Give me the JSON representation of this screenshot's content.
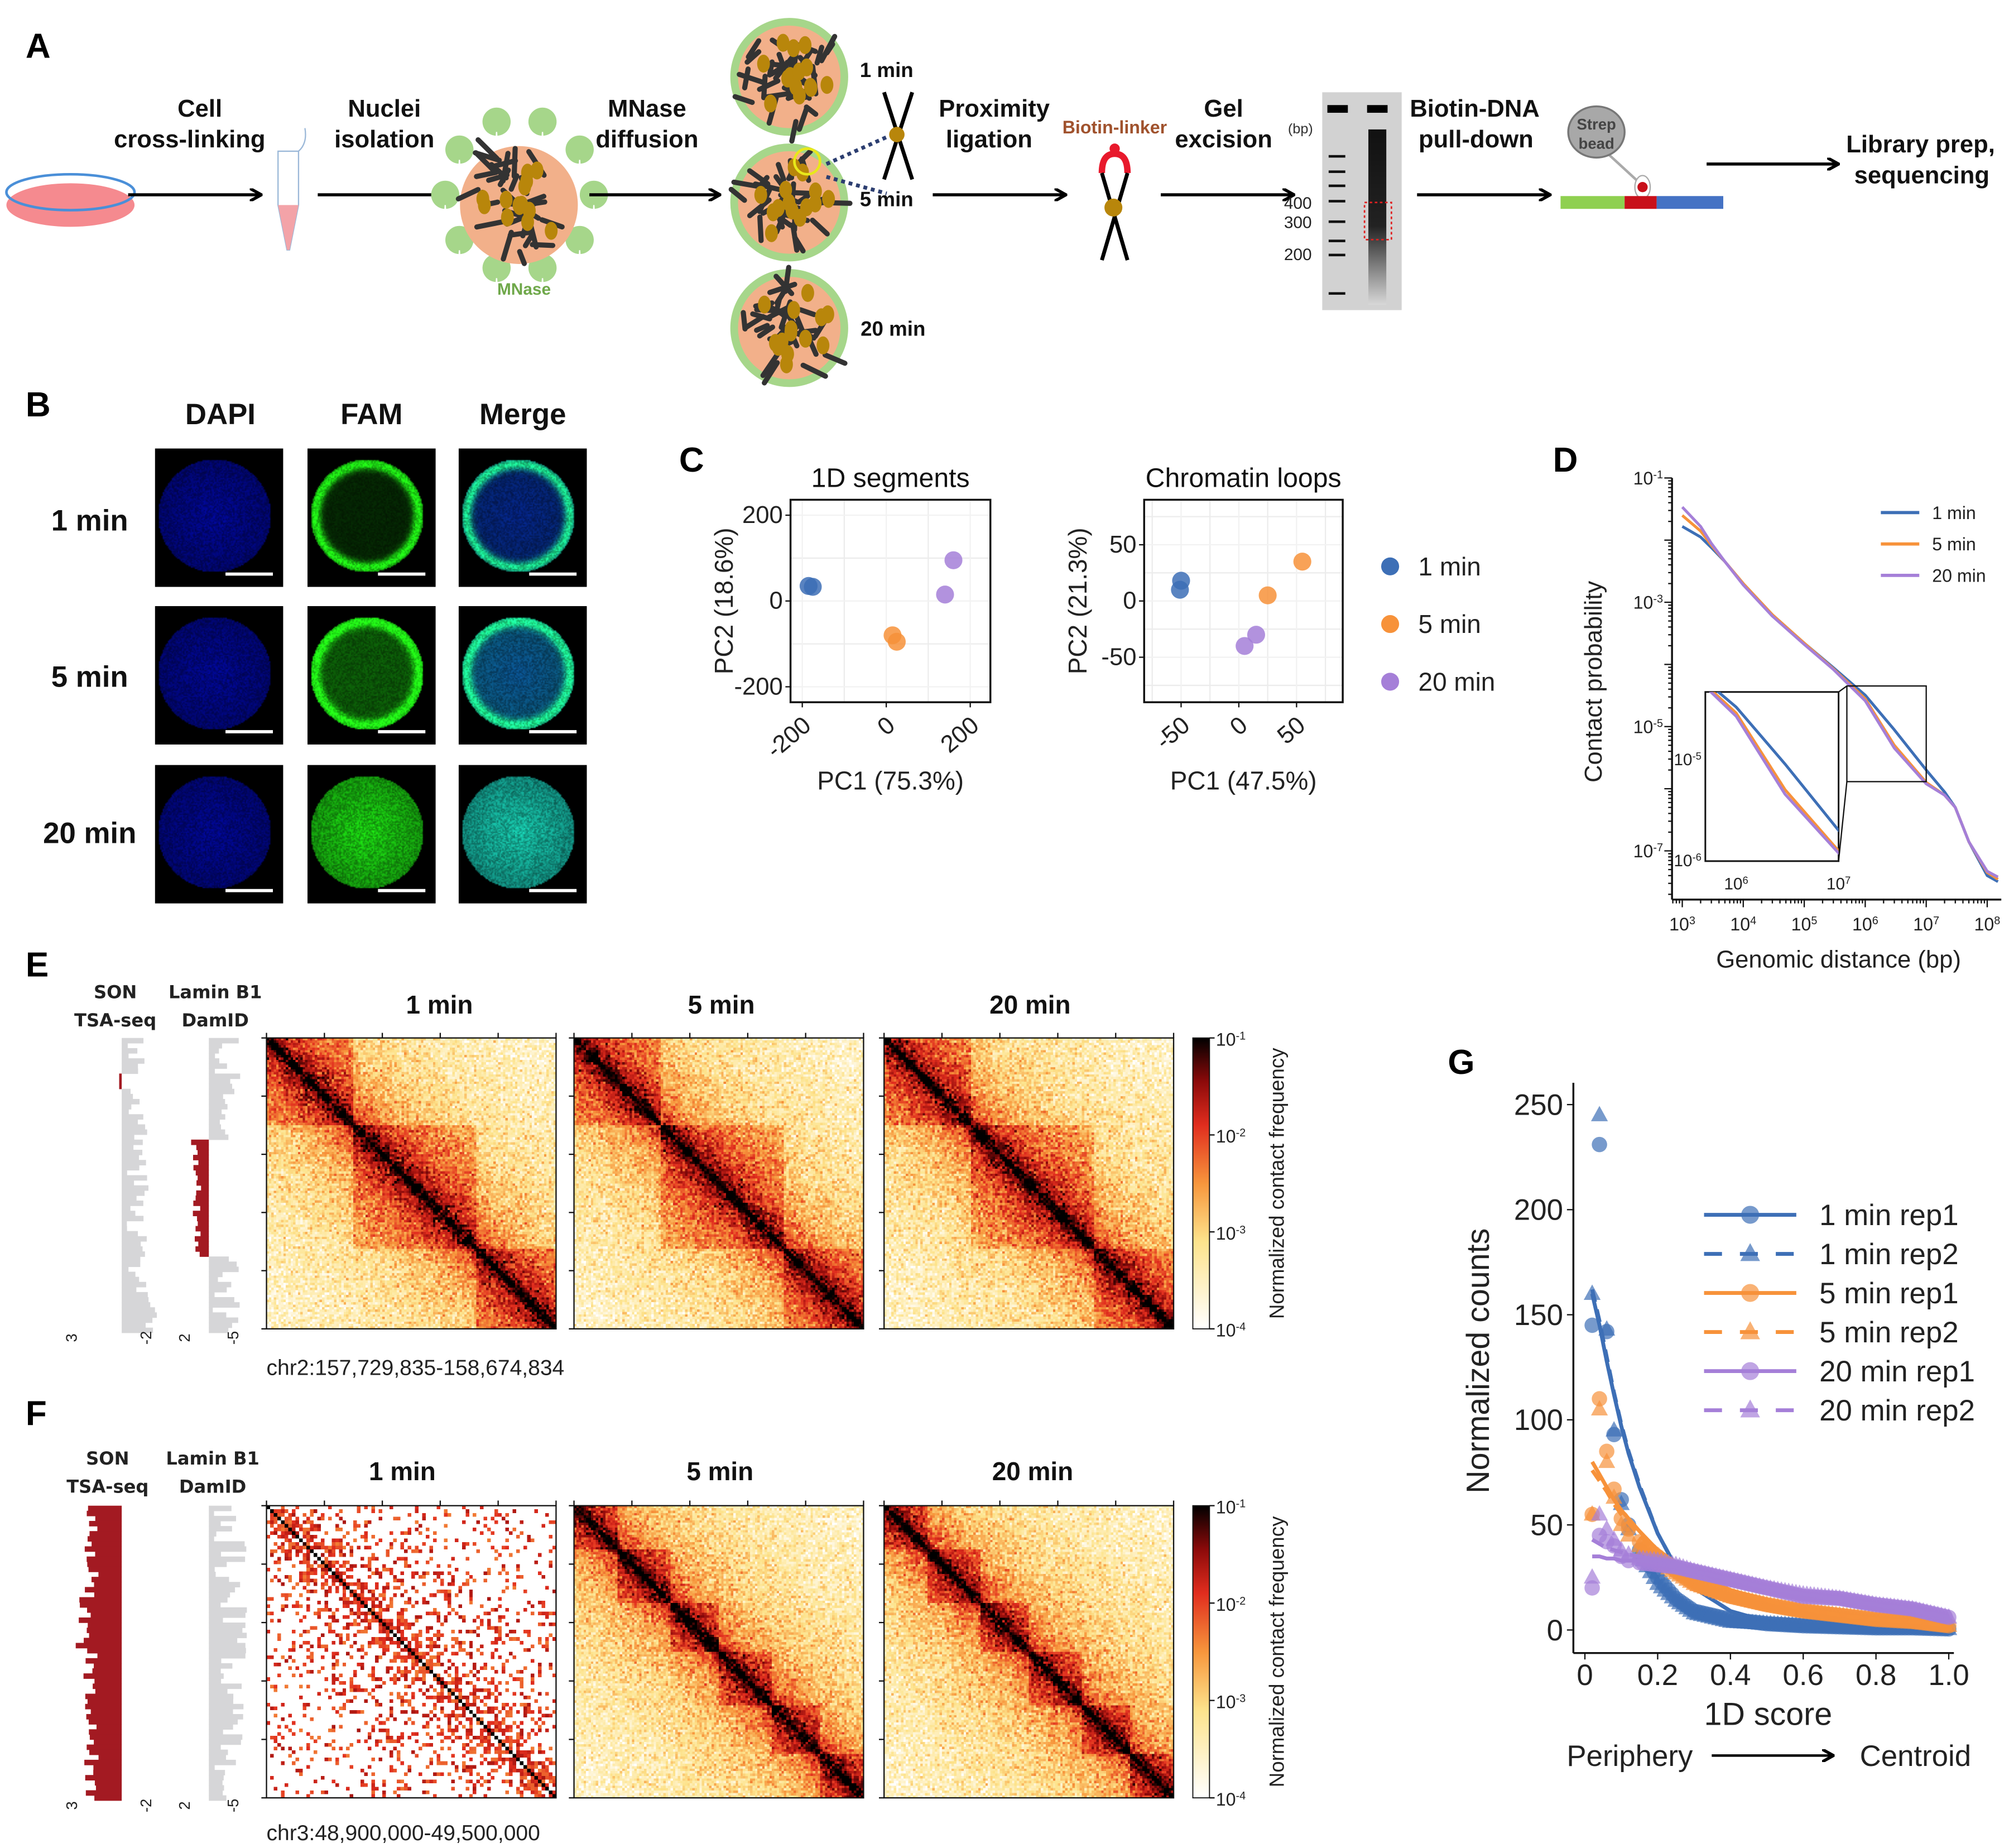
{
  "panels": {
    "a": "A",
    "b": "B",
    "c": "C",
    "d": "D",
    "e": "E",
    "f": "F",
    "g": "G"
  },
  "schematic": {
    "steps": [
      {
        "line1": "Cell",
        "line2": "cross-linking"
      },
      {
        "line1": "Nuclei",
        "line2": "isolation"
      },
      {
        "line1": "MNase",
        "line2": "diffusion"
      },
      {
        "line1": "Proximity",
        "line2": "ligation"
      },
      {
        "line1": "Gel",
        "line2": "excision"
      },
      {
        "line1": "Biotin-DNA",
        "line2": "pull-down"
      },
      {
        "line1": "Library prep,",
        "line2": "sequencing"
      }
    ],
    "mnase_label": "MNase",
    "times": [
      "1 min",
      "5 min",
      "20 min"
    ],
    "biotin_linker": "Biotin-linker",
    "gel_unit": "(bp)",
    "gel_markers": [
      "400",
      "300",
      "200"
    ],
    "strep_bead": [
      "Strep",
      "bead"
    ]
  },
  "microscopy": {
    "channels": [
      "DAPI",
      "FAM",
      "Merge"
    ],
    "rows": [
      "1 min",
      "5 min",
      "20 min"
    ]
  },
  "tracks": {
    "son": [
      "SON",
      "TSA-seq"
    ],
    "lamin": [
      "Lamin B1",
      "DamID"
    ],
    "son_axis": [
      "3",
      "-2"
    ],
    "lamin_axis": [
      "2",
      "-5"
    ]
  },
  "heatmaps": {
    "e": {
      "titles": [
        "1 min",
        "5 min",
        "20 min"
      ],
      "region": "chr2:157,729,835-158,674,834"
    },
    "f": {
      "titles": [
        "1 min",
        "5 min",
        "20 min"
      ],
      "region": "chr3:48,900,000-49,500,000"
    },
    "colorbar": {
      "label": "Normalized contact frequency",
      "ticks": [
        {
          "base": "10",
          "exp": "-1"
        },
        {
          "base": "10",
          "exp": "-2"
        },
        {
          "base": "10",
          "exp": "-3"
        },
        {
          "base": "10",
          "exp": "-4"
        }
      ]
    }
  },
  "colors": {
    "1 min": "#3d6fb6",
    "5 min": "#f7923a",
    "20 min": "#a57fd8",
    "track_red": "#a31a22",
    "track_gray": "#d6d6d8"
  },
  "chart_data": [
    {
      "type": "scatter",
      "title": "1D segments",
      "xlabel": "PC1 (75.3%)",
      "ylabel": "PC2 (18.6%)",
      "xlim": [
        -228,
        248
      ],
      "ylim": [
        -236,
        236
      ],
      "xticks": [
        -200,
        0,
        200
      ],
      "yticks": [
        200,
        0,
        -200
      ],
      "minor_grid_x": [
        -100,
        100
      ],
      "minor_grid_y": [
        100,
        -100
      ],
      "grid": true,
      "series": [
        {
          "name": "1 min",
          "points": [
            [
              -185,
              35
            ],
            [
              -175,
              33
            ]
          ]
        },
        {
          "name": "5 min",
          "points": [
            [
              15,
              -80
            ],
            [
              25,
              -95
            ]
          ]
        },
        {
          "name": "20 min",
          "points": [
            [
              160,
              95
            ],
            [
              140,
              15
            ]
          ]
        }
      ]
    },
    {
      "type": "scatter",
      "title": "Chromatin loops",
      "xlabel": "PC1 (47.5%)",
      "ylabel": "PC2 (21.3%)",
      "xlim": [
        -82,
        90
      ],
      "ylim": [
        -90,
        90
      ],
      "xticks": [
        -50,
        0,
        50
      ],
      "yticks": [
        50,
        0,
        -50
      ],
      "minor_grid_x": [
        -75,
        -25,
        25,
        75
      ],
      "minor_grid_y": [
        75,
        25,
        -25,
        -75
      ],
      "grid": true,
      "legend": "right",
      "series": [
        {
          "name": "1 min",
          "points": [
            [
              -50,
              18
            ],
            [
              -51,
              10
            ]
          ]
        },
        {
          "name": "5 min",
          "points": [
            [
              55,
              35
            ],
            [
              25,
              5
            ]
          ]
        },
        {
          "name": "20 min",
          "points": [
            [
              15,
              -30
            ],
            [
              5,
              -40
            ]
          ]
        }
      ]
    },
    {
      "type": "line",
      "xlabel": "Genomic distance (bp)",
      "ylabel": "Contact probability",
      "xscale": "log",
      "yscale": "log",
      "xlim": [
        676,
        170000000
      ],
      "ylim": [
        1.66e-08,
        0.1
      ],
      "xtick_labels": [
        {
          "base": "10",
          "exp": "3"
        },
        {
          "base": "10",
          "exp": "4"
        },
        {
          "base": "10",
          "exp": "5"
        },
        {
          "base": "10",
          "exp": "6"
        },
        {
          "base": "10",
          "exp": "7"
        },
        {
          "base": "10",
          "exp": "8"
        }
      ],
      "ytick_labels": [
        {
          "base": "10",
          "exp": "-1"
        },
        {
          "base": "10",
          "exp": "-3"
        },
        {
          "base": "10",
          "exp": "-5"
        },
        {
          "base": "10",
          "exp": "-7"
        }
      ],
      "legend": "top-right",
      "x": [
        1000,
        2000,
        3000,
        5000,
        10000,
        30000,
        100000,
        300000,
        1000000,
        3000000,
        10000000,
        20000000,
        30000000,
        50000000,
        100000000,
        150000000
      ],
      "series": [
        {
          "name": "1 min",
          "values": [
            0.0166,
            0.0112,
            0.0076,
            0.0045,
            0.002,
            0.00063,
            0.00022,
            8.9e-05,
            3.2e-05,
            8.9e-06,
            2e-06,
            8.9e-07,
            5e-07,
            1.4e-07,
            4e-08,
            3.2e-08
          ]
        },
        {
          "name": "5 min",
          "values": [
            0.025,
            0.014,
            0.0083,
            0.0045,
            0.002,
            0.00063,
            0.00022,
            8.5e-05,
            2.8e-05,
            5e-06,
            1.26e-06,
            7.9e-07,
            5e-07,
            1.4e-07,
            4.5e-08,
            3.5e-08
          ]
        },
        {
          "name": "20 min",
          "values": [
            0.034,
            0.0166,
            0.0089,
            0.0045,
            0.0019,
            0.0006,
            0.00021,
            8.3e-05,
            2.6e-05,
            4.5e-06,
            1.2e-06,
            7.9e-07,
            5e-07,
            1.4e-07,
            4.7e-08,
            3.8e-08
          ]
        }
      ],
      "inset": {
        "xlim": [
          500000,
          10000000
        ],
        "ylim": [
          1e-06,
          4.5e-05
        ],
        "xtick_labels": [
          {
            "base": "10",
            "exp": "6"
          },
          {
            "base": "10",
            "exp": "7"
          }
        ],
        "ytick_labels": [
          {
            "base": "10",
            "exp": "-5"
          },
          {
            "base": "10",
            "exp": "-6"
          }
        ]
      }
    },
    {
      "type": "scatter",
      "xlabel": "1D score",
      "ylabel": "Normalized counts",
      "xlim": [
        -0.03,
        1.014
      ],
      "ylim": [
        -11,
        262
      ],
      "xticks": [
        "0",
        "0.2",
        "0.4",
        "0.6",
        "0.8",
        "1.0"
      ],
      "yticks": [
        "250",
        "200",
        "150",
        "100",
        "50",
        "0"
      ],
      "axis_note": {
        "left": "Periphery",
        "right": "Centroid"
      },
      "legend": "right",
      "x": [
        0.02,
        0.04,
        0.06,
        0.08,
        0.1,
        0.12,
        0.15,
        0.2,
        0.25,
        0.3,
        0.4,
        0.5,
        0.6,
        0.7,
        0.8,
        0.9,
        1.0
      ],
      "series": [
        {
          "name": "1 min rep1",
          "marker": "circle",
          "line": "solid",
          "color": "#3d6fb6",
          "values": [
            145,
            231,
            142,
            93,
            62,
            50,
            38,
            25,
            15,
            9,
            5,
            3,
            2,
            1.5,
            1,
            1,
            0.5
          ],
          "fit": [
            160,
            145,
            128,
            112,
            97,
            84,
            68,
            46,
            30,
            20,
            9,
            4,
            2,
            1,
            1,
            0.5,
            0.5
          ]
        },
        {
          "name": "1 min rep2",
          "marker": "triangle",
          "line": "dashed",
          "color": "#3d6fb6",
          "values": [
            160,
            245,
            143,
            95,
            60,
            48,
            36,
            22,
            14,
            8,
            4,
            3,
            2,
            1.5,
            1,
            1,
            0.5
          ],
          "fit": [
            162,
            147,
            130,
            113,
            98,
            85,
            69,
            46,
            30,
            20,
            9,
            4,
            2,
            1,
            1,
            0.5,
            0.5
          ]
        },
        {
          "name": "5 min rep1",
          "marker": "circle",
          "line": "solid",
          "color": "#f7923a",
          "values": [
            55,
            110,
            85,
            67,
            53,
            48,
            42,
            35,
            28,
            22,
            16,
            12,
            9,
            7,
            5,
            4,
            2
          ],
          "fit": [
            80,
            74,
            68,
            62,
            57,
            53,
            47,
            38,
            32,
            27,
            19,
            14,
            10,
            7,
            5,
            4,
            2
          ]
        },
        {
          "name": "5 min rep2",
          "marker": "triangle",
          "line": "dashed",
          "color": "#f7923a",
          "values": [
            55,
            105,
            80,
            63,
            50,
            45,
            40,
            33,
            27,
            22,
            16,
            12,
            9,
            7,
            5,
            4,
            2
          ],
          "fit": [
            76,
            71,
            66,
            60,
            55,
            51,
            45,
            37,
            31,
            26,
            19,
            14,
            10,
            7,
            5,
            4,
            2
          ]
        },
        {
          "name": "20 min rep1",
          "marker": "circle",
          "line": "solid",
          "color": "#a57fd8",
          "values": [
            20,
            45,
            42,
            40,
            35,
            33,
            32,
            31,
            30,
            28,
            24,
            20,
            16,
            15,
            12,
            10,
            6
          ],
          "fit": [
            35,
            35,
            34,
            34,
            33,
            33,
            33,
            32,
            30,
            28,
            24,
            20,
            17,
            14,
            12,
            9,
            6
          ]
        },
        {
          "name": "20 min rep2",
          "marker": "triangle",
          "line": "dashed",
          "color": "#a57fd8",
          "values": [
            25,
            55,
            48,
            43,
            38,
            36,
            34,
            33,
            31,
            28,
            24,
            20,
            17,
            15,
            12,
            10,
            6
          ],
          "fit": [
            43,
            41,
            39,
            38,
            37,
            36,
            35,
            33,
            31,
            28,
            24,
            20,
            17,
            15,
            12,
            10,
            6
          ]
        }
      ]
    }
  ]
}
